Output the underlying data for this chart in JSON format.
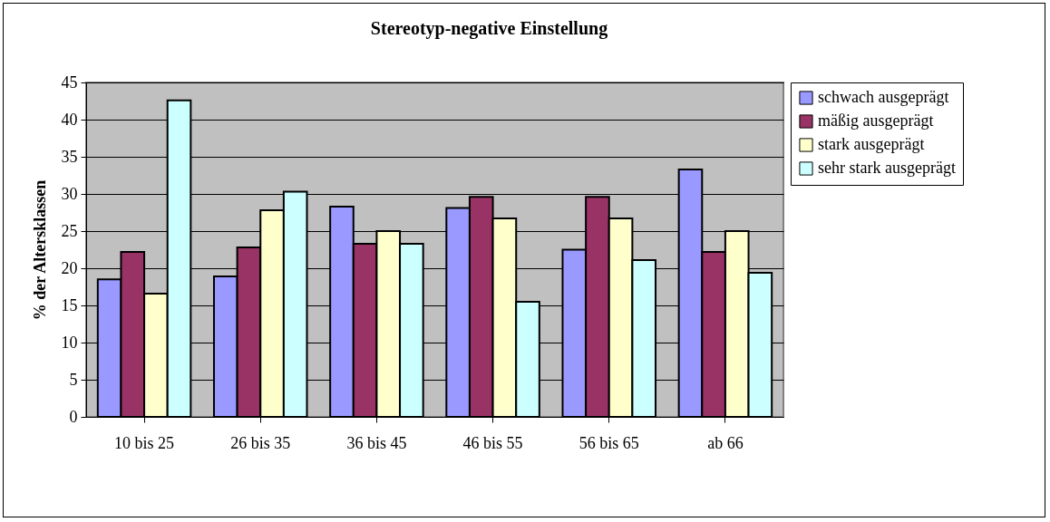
{
  "chart_data": {
    "type": "bar",
    "title": "Stereotyp-negative Einstellung",
    "ylabel": "% der Altersklassen",
    "categories": [
      "10 bis 25",
      "26 bis 35",
      "36 bis 45",
      "46 bis 55",
      "56 bis 65",
      "ab 66"
    ],
    "series": [
      {
        "name": "schwach ausgeprägt",
        "color": "#9999ff",
        "values": [
          18.5,
          18.9,
          28.3,
          28.1,
          22.5,
          33.3
        ]
      },
      {
        "name": "mäßig ausgeprägt",
        "color": "#993366",
        "values": [
          22.2,
          22.8,
          23.3,
          29.6,
          29.6,
          22.2
        ]
      },
      {
        "name": "stark ausgeprägt",
        "color": "#ffffcc",
        "values": [
          16.6,
          27.8,
          25.0,
          26.7,
          26.7,
          25.0
        ]
      },
      {
        "name": "sehr stark ausgeprägt",
        "color": "#ccffff",
        "values": [
          42.6,
          30.3,
          23.3,
          15.5,
          21.1,
          19.4
        ]
      }
    ],
    "ylim": [
      0,
      45
    ],
    "yticks": [
      0,
      5,
      10,
      15,
      20,
      25,
      30,
      35,
      40,
      45
    ],
    "grid": "y",
    "legend": "right"
  }
}
